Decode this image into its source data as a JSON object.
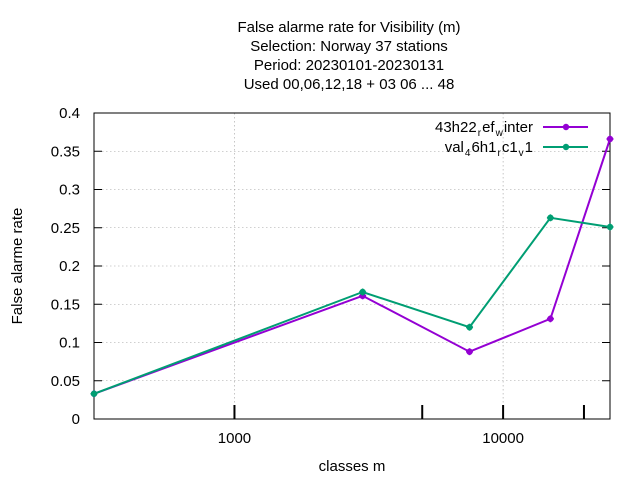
{
  "chart_data": {
    "type": "line",
    "title_lines": [
      "False alarme rate  for Visibility (m)",
      "Selection: Norway      37 stations",
      "Period: 20230101-20230131",
      "Used  00,06,12,18  + 03 06 ... 48"
    ],
    "xlabel": "classes m",
    "ylabel": "False alarme rate",
    "xscale": "log",
    "xlim": [
      300,
      25000
    ],
    "ylim": [
      0,
      0.4
    ],
    "grid": true,
    "legend_position": "top-right",
    "x_ticks": [
      {
        "value": 1000,
        "label": "1000"
      },
      {
        "value": 10000,
        "label": "10000"
      }
    ],
    "x_minor_ticks": [
      5000,
      20000
    ],
    "y_ticks": [
      {
        "value": 0,
        "label": "0"
      },
      {
        "value": 0.05,
        "label": "0.05"
      },
      {
        "value": 0.1,
        "label": "0.1"
      },
      {
        "value": 0.15,
        "label": "0.15"
      },
      {
        "value": 0.2,
        "label": "0.2"
      },
      {
        "value": 0.25,
        "label": "0.25"
      },
      {
        "value": 0.3,
        "label": "0.3"
      },
      {
        "value": 0.35,
        "label": "0.35"
      },
      {
        "value": 0.4,
        "label": "0.4"
      }
    ],
    "series": [
      {
        "legend_parts": [
          {
            "text": "43h22",
            "sub": false
          },
          {
            "text": "r",
            "sub": true
          },
          {
            "text": "ef",
            "sub": false
          },
          {
            "text": "w",
            "sub": true
          },
          {
            "text": "inter",
            "sub": false
          }
        ],
        "color": "#9400d3",
        "x": [
          300,
          3000,
          7500,
          15000,
          25000
        ],
        "y": [
          0.033,
          0.161,
          0.088,
          0.131,
          0.366
        ]
      },
      {
        "legend_parts": [
          {
            "text": "val",
            "sub": false
          },
          {
            "text": "4",
            "sub": true
          },
          {
            "text": "6h1",
            "sub": false
          },
          {
            "text": "r",
            "sub": true
          },
          {
            "text": "c1",
            "sub": false
          },
          {
            "text": "v",
            "sub": true
          },
          {
            "text": "1",
            "sub": false
          }
        ],
        "color": "#009e73",
        "x": [
          300,
          3000,
          7500,
          15000,
          25000
        ],
        "y": [
          0.033,
          0.166,
          0.12,
          0.263,
          0.251
        ]
      }
    ]
  }
}
